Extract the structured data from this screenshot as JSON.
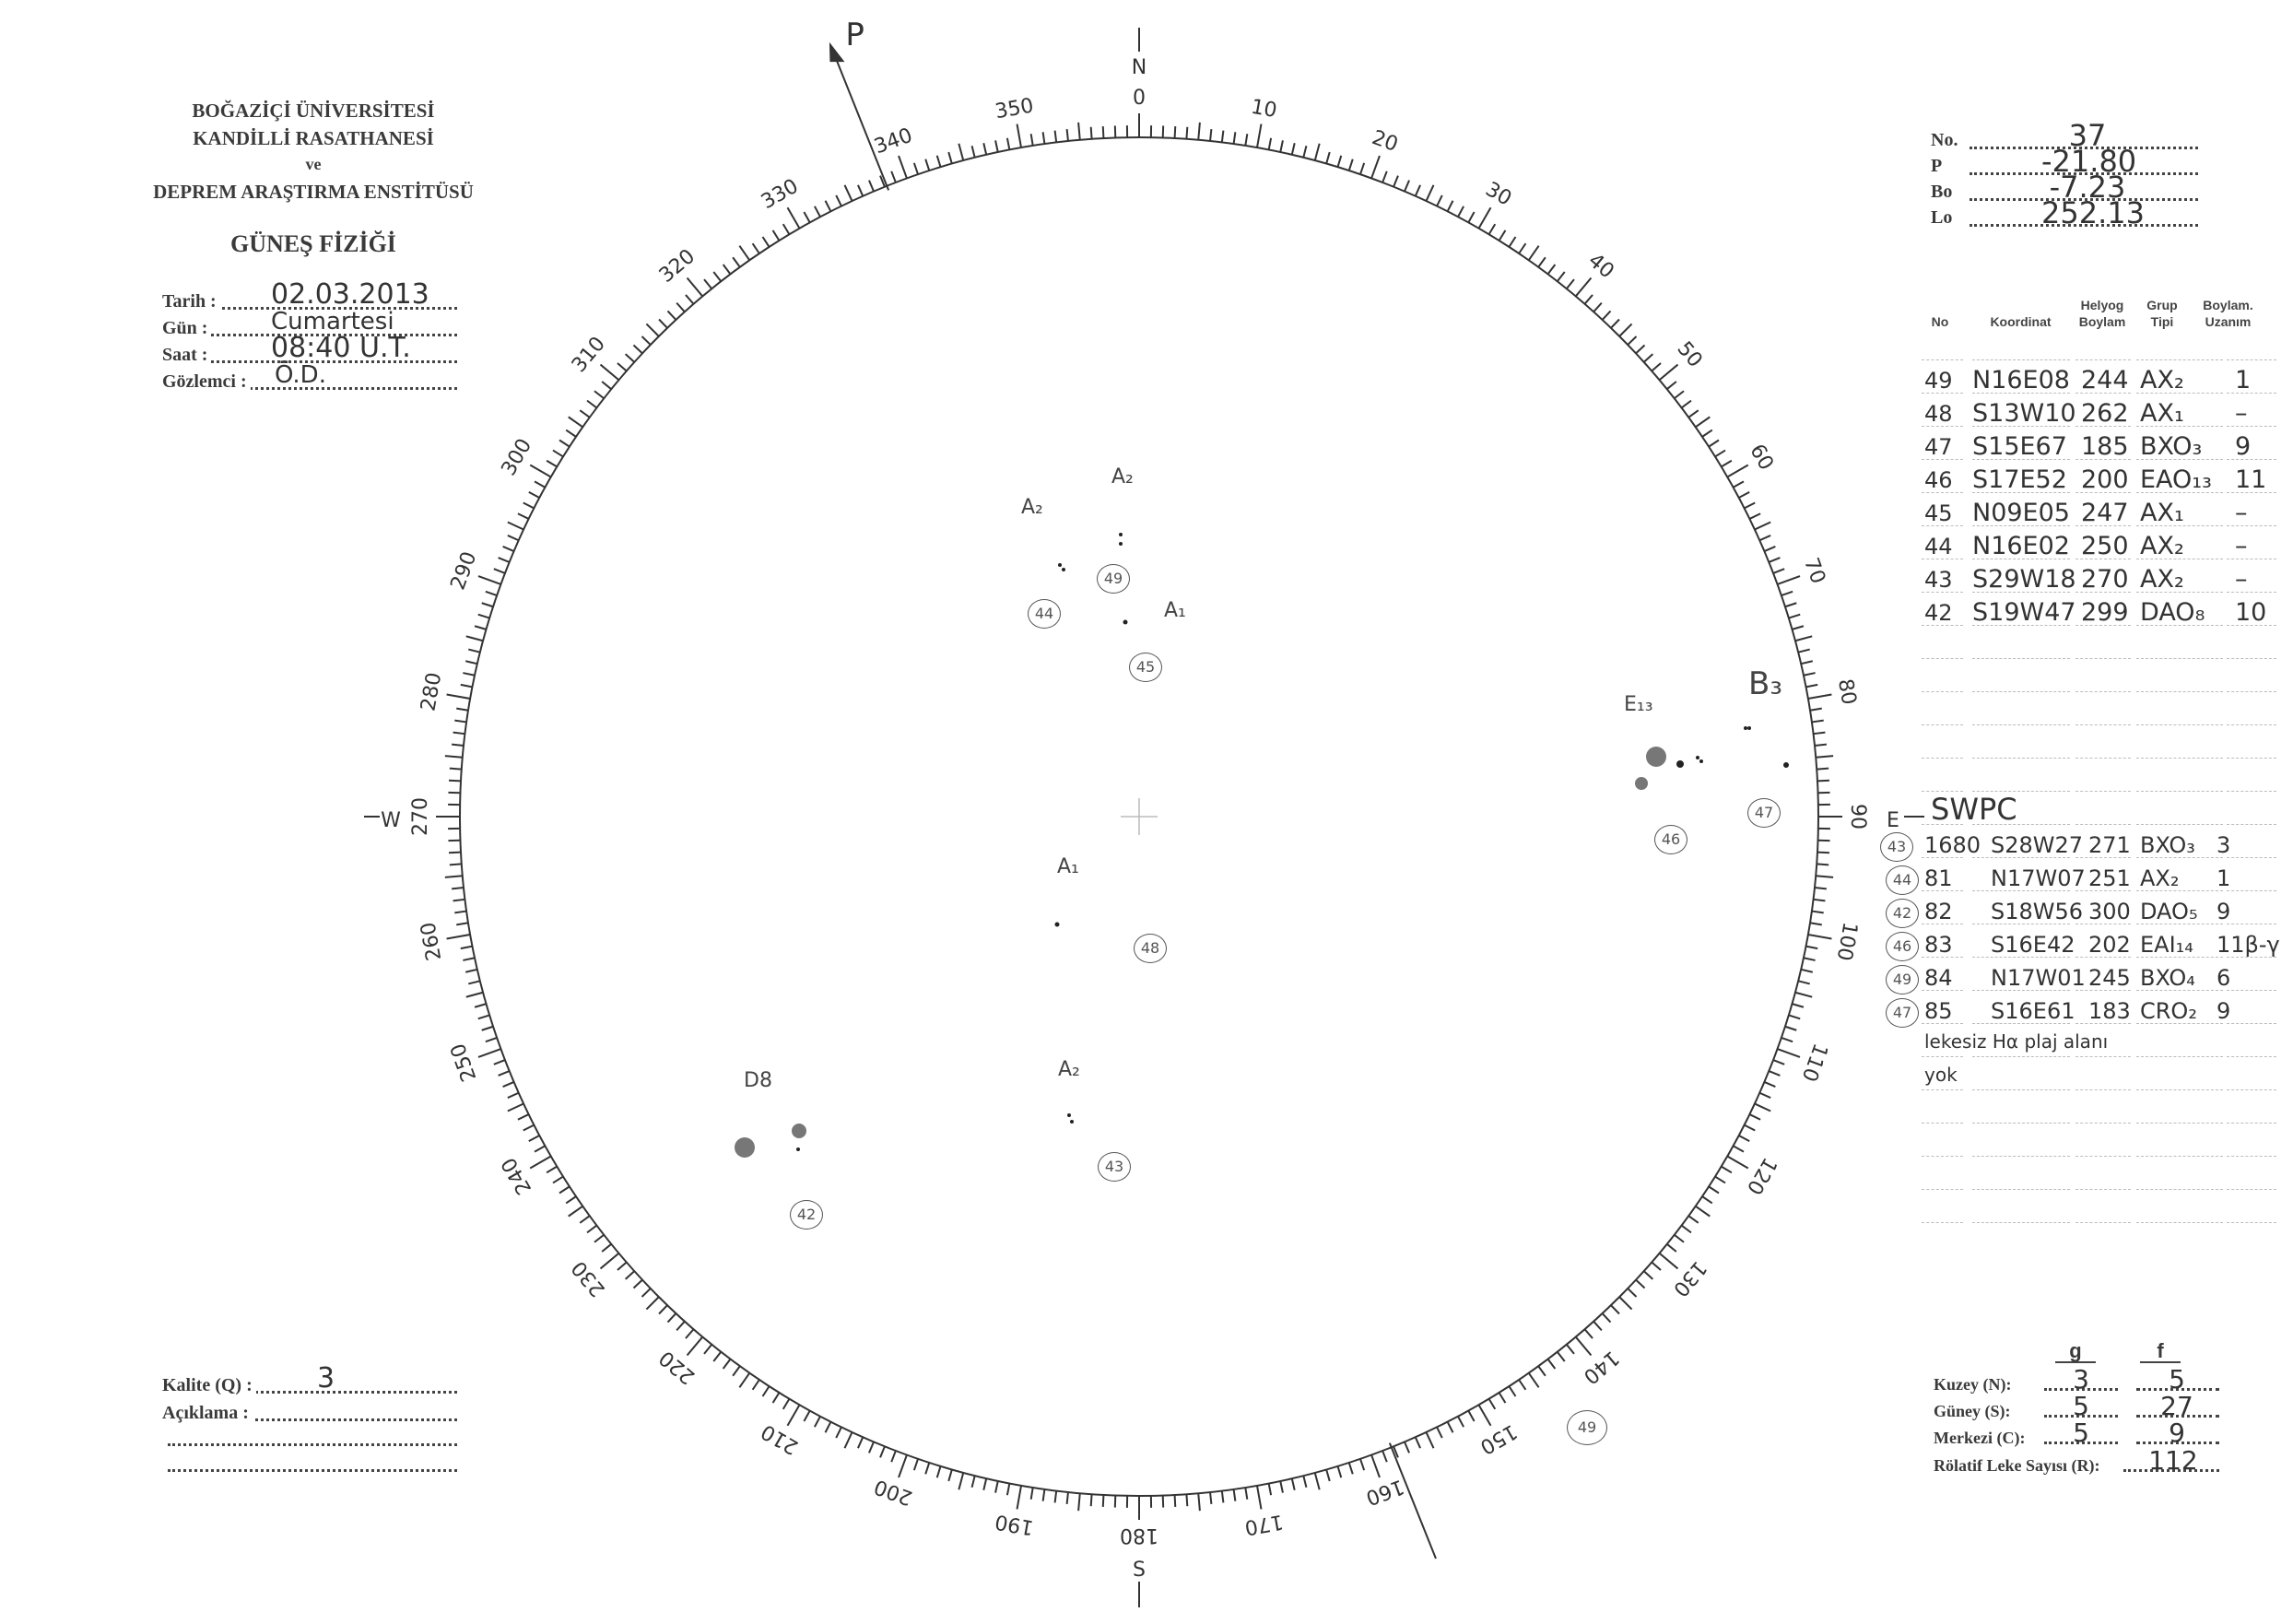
{
  "institution": {
    "line1": "BOĞAZİÇİ ÜNİVERSİTESİ",
    "line2": "KANDİLLİ RASATHANESİ",
    "line3": "ve",
    "line4": "DEPREM ARAŞTIRMA ENSTİTÜSÜ",
    "title": "GÜNEŞ FİZİĞİ"
  },
  "observation": {
    "date_label": "Tarih :",
    "date": "02.03.2013",
    "day_label": "Gün :",
    "day": "Cumartesi",
    "time_label": "Saat :",
    "time": "08:40 U.T.",
    "observer_label": "Gözlemci :",
    "observer": "Ö.D."
  },
  "quality": {
    "label": "Kalite (Q) :",
    "value": "3",
    "remark_label": "Açıklama :"
  },
  "params": {
    "no_label": "No.",
    "no": "37",
    "p_label": "P",
    "p": "-21.80",
    "bo_label": "Bo",
    "bo": "-7.23",
    "lo_label": "Lo",
    "lo": "252.13"
  },
  "table": {
    "headers": {
      "no": "No",
      "coord": "Koordinat",
      "helyog": "Helyog Boylam",
      "grup": "Grup Tipi",
      "boylam": "Boylam. Uzanım"
    },
    "rows": [
      {
        "no": "49",
        "coord": "N16E08",
        "lon": "244",
        "type": "AX₂",
        "ext": "1"
      },
      {
        "no": "48",
        "coord": "S13W10",
        "lon": "262",
        "type": "AX₁",
        "ext": "–"
      },
      {
        "no": "47",
        "coord": "S15E67",
        "lon": "185",
        "type": "BXO₃",
        "ext": "9"
      },
      {
        "no": "46",
        "coord": "S17E52",
        "lon": "200",
        "type": "EAO₁₃",
        "ext": "11"
      },
      {
        "no": "45",
        "coord": "N09E05",
        "lon": "247",
        "type": "AX₁",
        "ext": "–"
      },
      {
        "no": "44",
        "coord": "N16E02",
        "lon": "250",
        "type": "AX₂",
        "ext": "–"
      },
      {
        "no": "43",
        "coord": "S29W18",
        "lon": "270",
        "type": "AX₂",
        "ext": "–"
      },
      {
        "no": "42",
        "coord": "S19W47",
        "lon": "299",
        "type": "DAO₈",
        "ext": "10"
      }
    ]
  },
  "swpc": {
    "title": "SWPC",
    "rows": [
      {
        "ref": "43",
        "no": "1680",
        "coord": "S28W27",
        "lon": "271",
        "type": "BXO₃",
        "ext": "3"
      },
      {
        "ref": "44",
        "no": "81",
        "coord": "N17W07",
        "lon": "251",
        "type": "AX₂",
        "ext": "1"
      },
      {
        "ref": "42",
        "no": "82",
        "coord": "S18W56",
        "lon": "300",
        "type": "DAO₅",
        "ext": "9"
      },
      {
        "ref": "46",
        "no": "83",
        "coord": "S16E42",
        "lon": "202",
        "type": "EAI₁₄",
        "ext": "11β-γ"
      },
      {
        "ref": "49",
        "no": "84",
        "coord": "N17W01",
        "lon": "245",
        "type": "BXO₄",
        "ext": "6"
      },
      {
        "ref": "47",
        "no": "85",
        "coord": "S16E61",
        "lon": "183",
        "type": "CRO₂",
        "ext": "9"
      }
    ],
    "note1": "lekesiz Hα plaj alanı",
    "note2": "yok"
  },
  "counts": {
    "g_label": "g",
    "f_label": "f",
    "north_label": "Kuzey (N):",
    "north_g": "3",
    "north_f": "5",
    "south_label": "Güney (S):",
    "south_g": "5",
    "south_f": "27",
    "center_label": "Merkezi (C):",
    "center_g": "5",
    "center_f": "9",
    "r_label": "Rölatif Leke Sayısı (R):",
    "r": "112"
  },
  "disk": {
    "cardinal": {
      "n": "N",
      "s": "S",
      "e": "E",
      "w": "W",
      "p": "P"
    },
    "degree_labels": [
      "0",
      "10",
      "20",
      "30",
      "40",
      "50",
      "60",
      "70",
      "80",
      "90",
      "100",
      "110",
      "120",
      "130",
      "140",
      "150",
      "160",
      "170",
      "180",
      "190",
      "200",
      "210",
      "220",
      "230",
      "240",
      "250",
      "260",
      "270",
      "280",
      "290",
      "300",
      "310",
      "320",
      "330",
      "340",
      "350"
    ],
    "p_angle_deg": -21.8,
    "groups": [
      {
        "label": "A₂",
        "ref": "44"
      },
      {
        "label": "A₂",
        "ref": "49"
      },
      {
        "label": "A₁",
        "ref": "45"
      },
      {
        "label": "E₁₃",
        "ref": "46"
      },
      {
        "label": "B₃",
        "ref": "47"
      },
      {
        "label": "A₁",
        "ref": "48"
      },
      {
        "label": "D8",
        "ref": "42"
      },
      {
        "label": "A₂",
        "ref": "43"
      }
    ],
    "extra_ref": "49"
  }
}
